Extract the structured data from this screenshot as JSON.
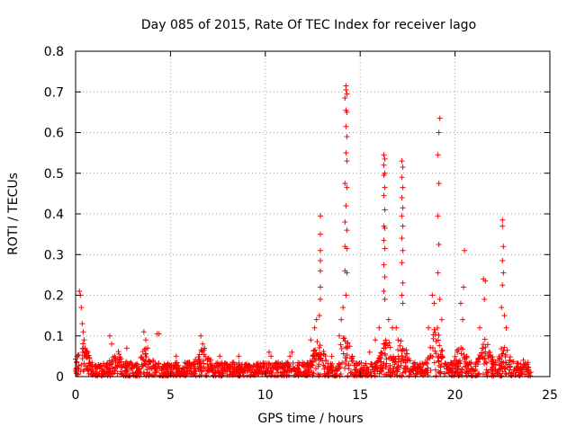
{
  "chart_data": {
    "type": "scatter",
    "title": "Day 085 of 2015, Rate Of TEC Index for receiver lago",
    "xlabel": "GPS time / hours",
    "ylabel": "ROTI / TECUs",
    "xlim": [
      0,
      25
    ],
    "ylim": [
      0,
      0.8
    ],
    "grid": true,
    "marker": "+",
    "colors": {
      "points": "#ff0000",
      "axes": "#000000",
      "grid": "#a0a0a0",
      "background": "#ffffff"
    },
    "xticks": [
      {
        "value": 0,
        "label": "0"
      },
      {
        "value": 5,
        "label": "5"
      },
      {
        "value": 10,
        "label": "10"
      },
      {
        "value": 15,
        "label": "15"
      },
      {
        "value": 20,
        "label": "20"
      },
      {
        "value": 25,
        "label": "25"
      }
    ],
    "yticks": [
      {
        "value": 0,
        "label": "0"
      },
      {
        "value": 0.1,
        "label": "0.1"
      },
      {
        "value": 0.2,
        "label": "0.2"
      },
      {
        "value": 0.3,
        "label": "0.3"
      },
      {
        "value": 0.4,
        "label": "0.4"
      },
      {
        "value": 0.5,
        "label": "0.5"
      },
      {
        "value": 0.6,
        "label": "0.6"
      },
      {
        "value": 0.7,
        "label": "0.7"
      },
      {
        "value": 0.8,
        "label": "0.8"
      }
    ],
    "series": [
      {
        "name": "ROTI",
        "points": [
          [
            0.2,
            0.21
          ],
          [
            0.25,
            0.2
          ],
          [
            0.3,
            0.17
          ],
          [
            0.35,
            0.13
          ],
          [
            0.4,
            0.11
          ],
          [
            0.45,
            0.09
          ],
          [
            0.5,
            0.07
          ],
          [
            0.55,
            0.05
          ],
          [
            1.8,
            0.1
          ],
          [
            1.9,
            0.08
          ],
          [
            2.7,
            0.07
          ],
          [
            3.6,
            0.11
          ],
          [
            3.7,
            0.09
          ],
          [
            3.8,
            0.07
          ],
          [
            4.3,
            0.105
          ],
          [
            4.4,
            0.105
          ],
          [
            5.3,
            0.05
          ],
          [
            6.6,
            0.1
          ],
          [
            6.7,
            0.08
          ],
          [
            6.8,
            0.07
          ],
          [
            7.6,
            0.05
          ],
          [
            8.6,
            0.05
          ],
          [
            10.2,
            0.06
          ],
          [
            10.3,
            0.05
          ],
          [
            11.3,
            0.05
          ],
          [
            11.4,
            0.06
          ],
          [
            12.4,
            0.09
          ],
          [
            12.6,
            0.12
          ],
          [
            12.7,
            0.14
          ],
          [
            12.9,
            0.395
          ],
          [
            12.9,
            0.35
          ],
          [
            12.9,
            0.31
          ],
          [
            12.9,
            0.285
          ],
          [
            12.9,
            0.26
          ],
          [
            12.9,
            0.22
          ],
          [
            12.9,
            0.19
          ],
          [
            12.85,
            0.15
          ],
          [
            13.5,
            0.05
          ],
          [
            13.9,
            0.1
          ],
          [
            14.0,
            0.14
          ],
          [
            14.1,
            0.17
          ],
          [
            14.25,
            0.715
          ],
          [
            14.25,
            0.705
          ],
          [
            14.3,
            0.695
          ],
          [
            14.2,
            0.685
          ],
          [
            14.25,
            0.655
          ],
          [
            14.3,
            0.65
          ],
          [
            14.25,
            0.615
          ],
          [
            14.3,
            0.59
          ],
          [
            14.25,
            0.55
          ],
          [
            14.3,
            0.53
          ],
          [
            14.2,
            0.475
          ],
          [
            14.3,
            0.465
          ],
          [
            14.25,
            0.42
          ],
          [
            14.2,
            0.38
          ],
          [
            14.3,
            0.36
          ],
          [
            14.2,
            0.32
          ],
          [
            14.3,
            0.315
          ],
          [
            14.2,
            0.26
          ],
          [
            14.3,
            0.255
          ],
          [
            14.25,
            0.2
          ],
          [
            15.5,
            0.06
          ],
          [
            15.8,
            0.09
          ],
          [
            16.0,
            0.12
          ],
          [
            16.25,
            0.545
          ],
          [
            16.3,
            0.535
          ],
          [
            16.25,
            0.52
          ],
          [
            16.3,
            0.5
          ],
          [
            16.25,
            0.495
          ],
          [
            16.3,
            0.465
          ],
          [
            16.25,
            0.445
          ],
          [
            16.3,
            0.41
          ],
          [
            16.25,
            0.37
          ],
          [
            16.3,
            0.365
          ],
          [
            16.25,
            0.335
          ],
          [
            16.3,
            0.315
          ],
          [
            16.25,
            0.275
          ],
          [
            16.3,
            0.245
          ],
          [
            16.25,
            0.21
          ],
          [
            16.3,
            0.19
          ],
          [
            16.5,
            0.14
          ],
          [
            16.7,
            0.12
          ],
          [
            16.9,
            0.12
          ],
          [
            17.0,
            0.09
          ],
          [
            17.2,
            0.53
          ],
          [
            17.25,
            0.515
          ],
          [
            17.2,
            0.49
          ],
          [
            17.25,
            0.465
          ],
          [
            17.2,
            0.44
          ],
          [
            17.25,
            0.415
          ],
          [
            17.2,
            0.395
          ],
          [
            17.25,
            0.37
          ],
          [
            17.2,
            0.34
          ],
          [
            17.25,
            0.31
          ],
          [
            17.2,
            0.28
          ],
          [
            17.25,
            0.23
          ],
          [
            17.2,
            0.2
          ],
          [
            17.25,
            0.18
          ],
          [
            18.6,
            0.12
          ],
          [
            18.8,
            0.2
          ],
          [
            18.9,
            0.18
          ],
          [
            19.2,
            0.635
          ],
          [
            19.15,
            0.6
          ],
          [
            19.1,
            0.545
          ],
          [
            19.15,
            0.475
          ],
          [
            19.1,
            0.395
          ],
          [
            19.15,
            0.325
          ],
          [
            19.1,
            0.255
          ],
          [
            19.2,
            0.19
          ],
          [
            19.3,
            0.14
          ],
          [
            20.3,
            0.18
          ],
          [
            20.4,
            0.14
          ],
          [
            20.5,
            0.31
          ],
          [
            20.45,
            0.22
          ],
          [
            21.3,
            0.12
          ],
          [
            21.5,
            0.24
          ],
          [
            21.6,
            0.235
          ],
          [
            21.55,
            0.19
          ],
          [
            22.5,
            0.385
          ],
          [
            22.5,
            0.37
          ],
          [
            22.55,
            0.32
          ],
          [
            22.5,
            0.285
          ],
          [
            22.55,
            0.255
          ],
          [
            22.5,
            0.225
          ],
          [
            22.45,
            0.17
          ],
          [
            22.6,
            0.15
          ],
          [
            22.7,
            0.12
          ],
          [
            23.6,
            0.04
          ],
          [
            23.7,
            0.03
          ],
          [
            23.8,
            0.03
          ]
        ]
      }
    ]
  }
}
